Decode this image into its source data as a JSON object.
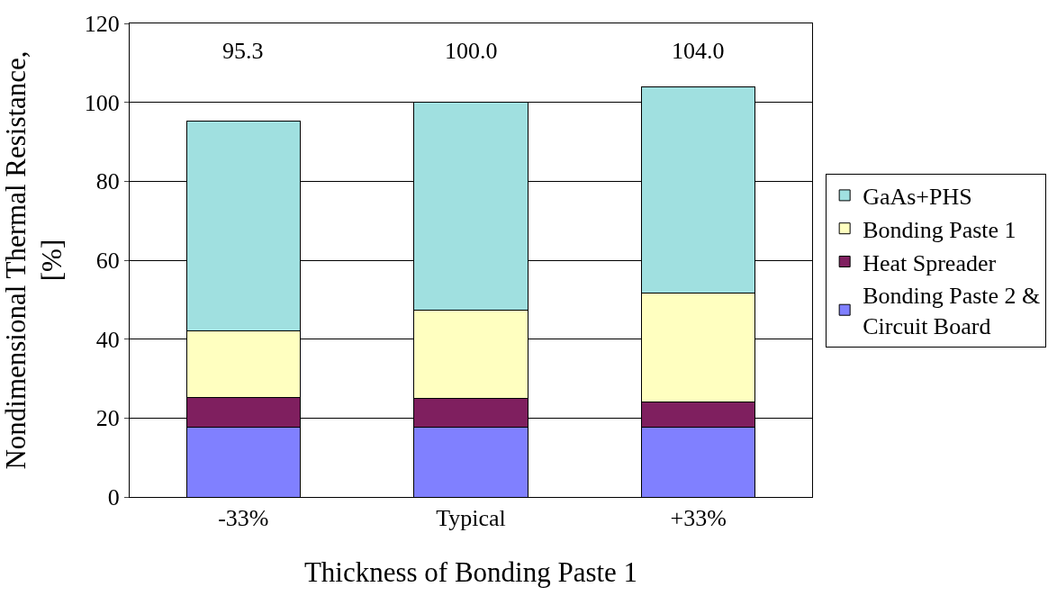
{
  "chart_data": {
    "type": "bar",
    "stacked": true,
    "xlabel": "Thickness of Bonding Paste 1",
    "ylabel": "Nondimensional Thermal Resistance,\n[%]",
    "categories": [
      "-33%",
      "Typical",
      "+33%"
    ],
    "series": [
      {
        "name": "Bonding Paste 2 &\nCircuit Board",
        "color": "#8080ff",
        "values": [
          17.7,
          17.7,
          17.7
        ]
      },
      {
        "name": "Heat Spreader",
        "color": "#7f1f5f",
        "values": [
          7.6,
          7.2,
          6.3
        ]
      },
      {
        "name": "Bonding Paste 1",
        "color": "#ffffc0",
        "values": [
          16.9,
          22.5,
          27.7
        ]
      },
      {
        "name": "GaAs+PHS",
        "color": "#a0e0e0",
        "values": [
          53.1,
          52.6,
          52.3
        ]
      }
    ],
    "totals": [
      "95.3",
      "100.0",
      "104.0"
    ],
    "ylim": [
      0,
      120
    ],
    "yticks": [
      0,
      20,
      40,
      60,
      80,
      100,
      120
    ],
    "grid": "y",
    "legend": "right"
  }
}
